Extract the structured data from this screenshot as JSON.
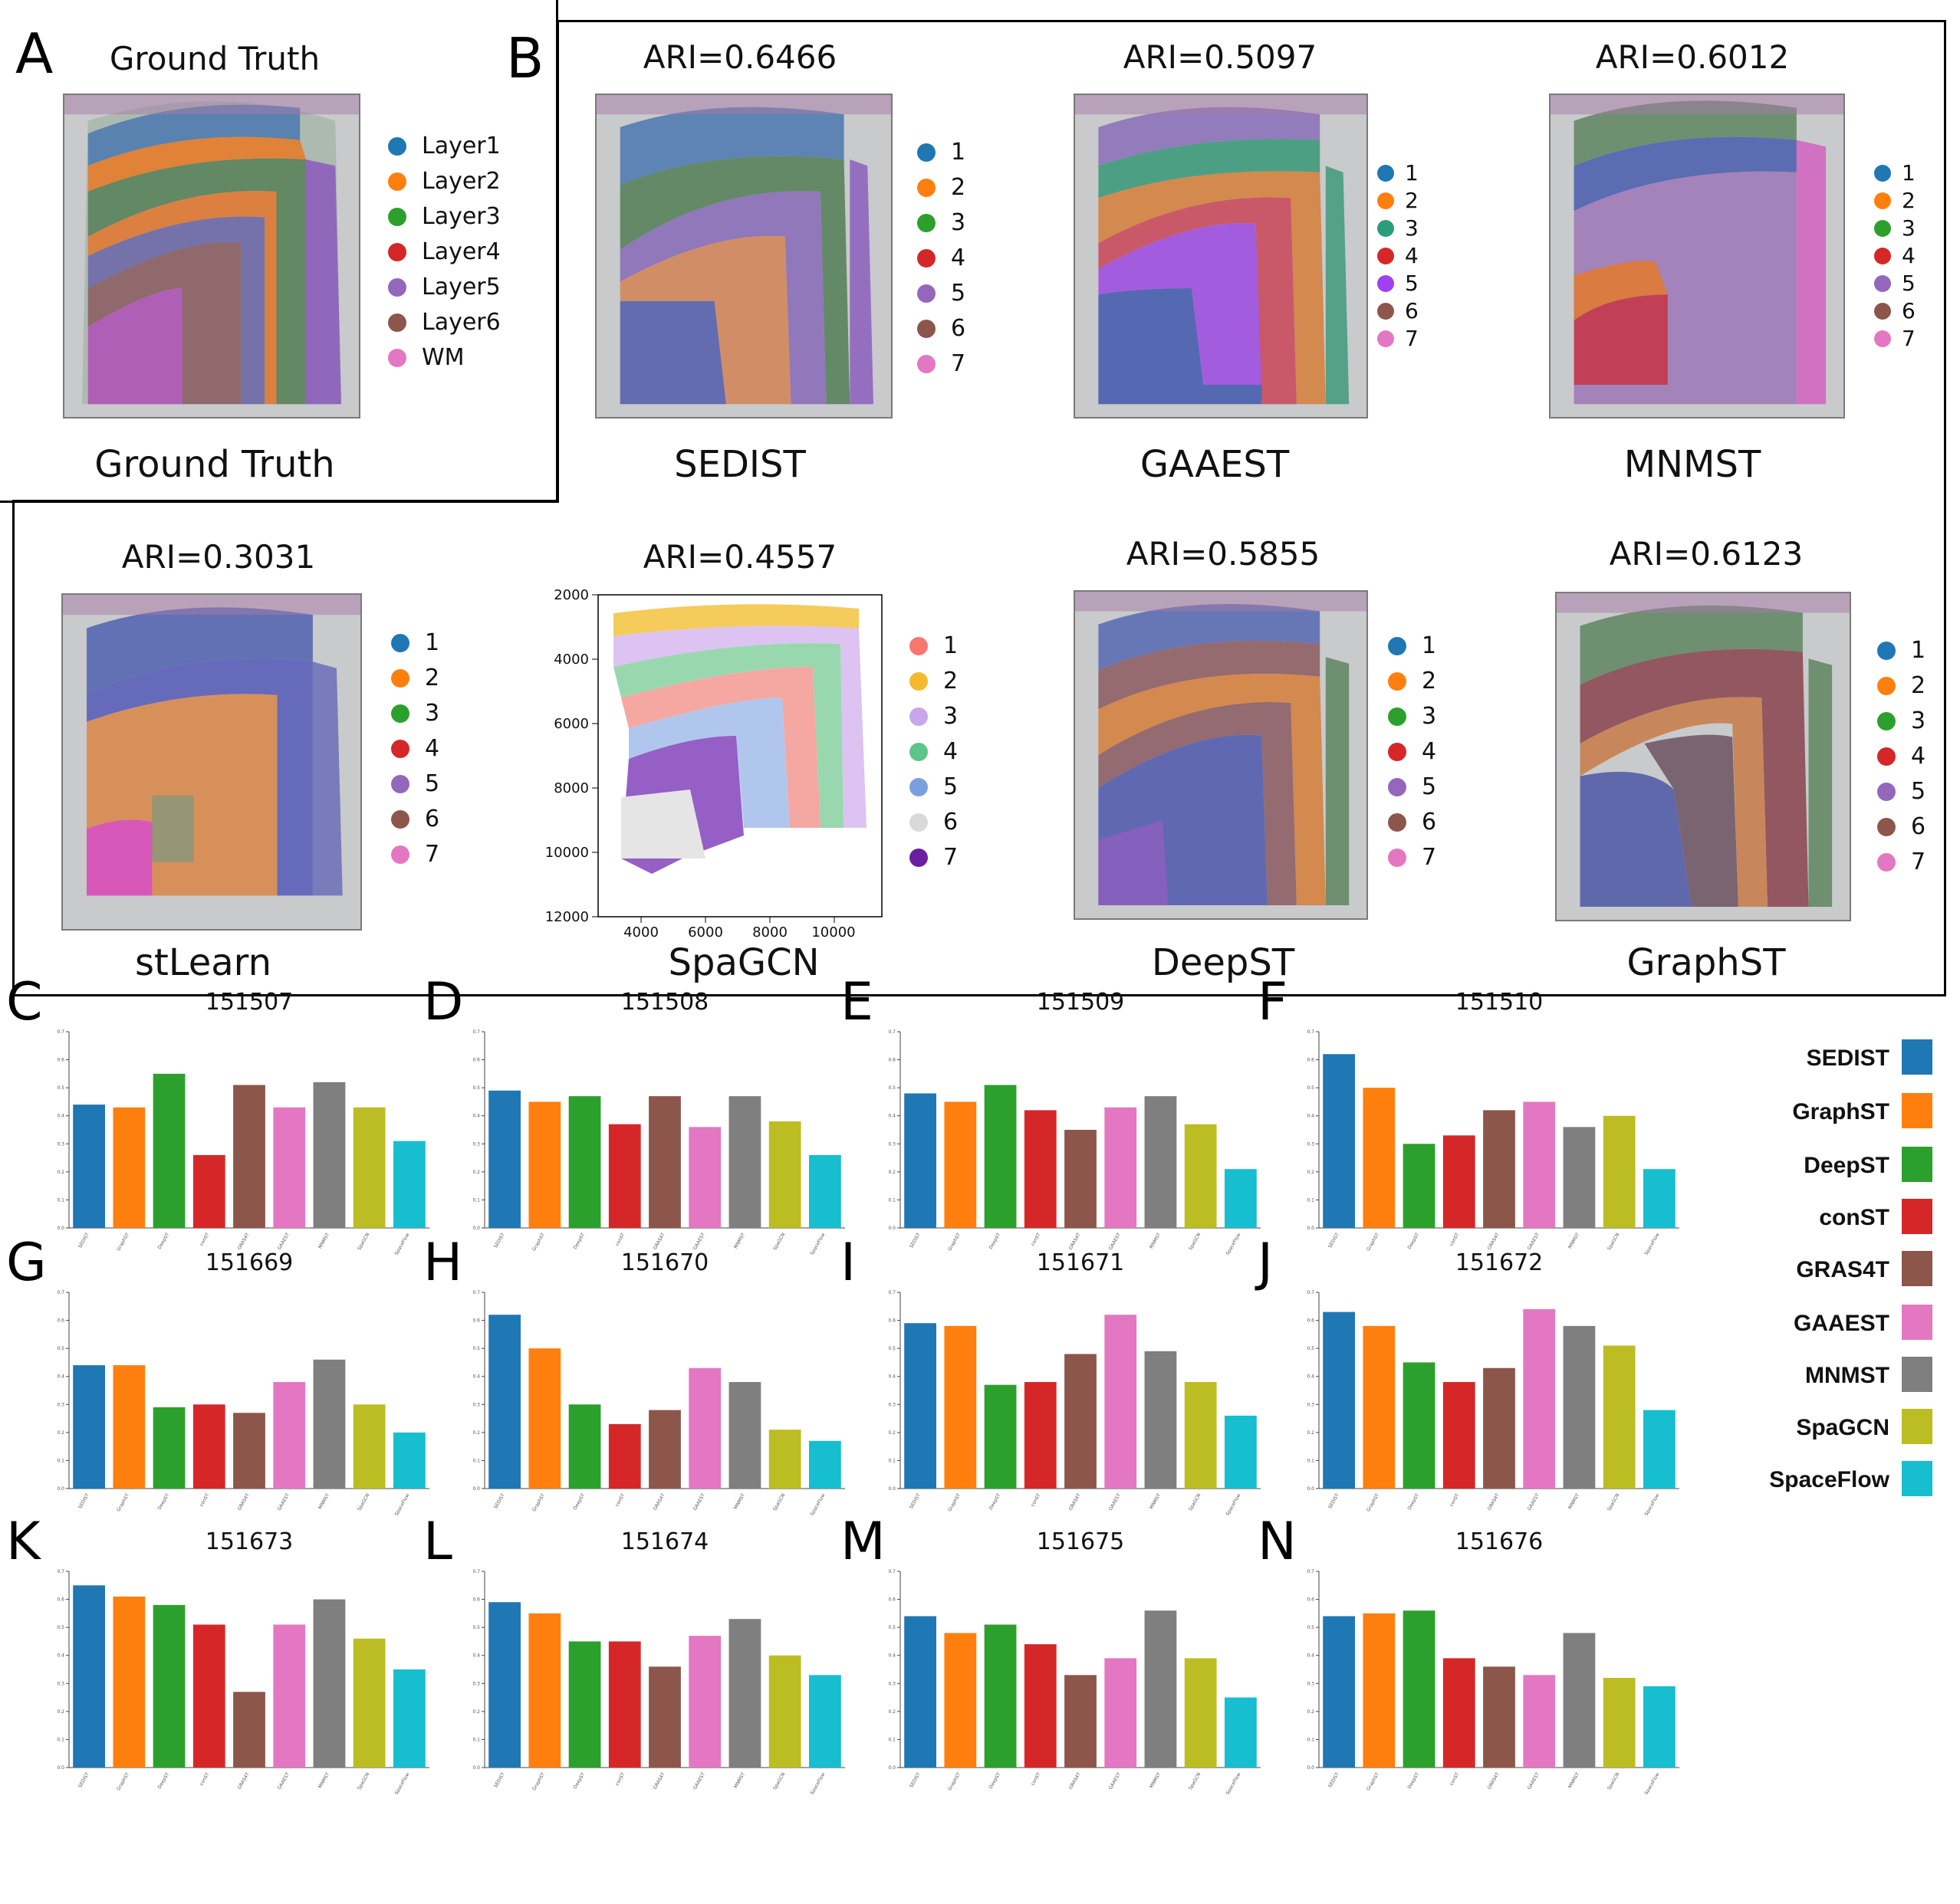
{
  "panels": {
    "A": "A",
    "B": "B",
    "C": "C",
    "D": "D",
    "E": "E",
    "F": "F",
    "G": "G",
    "H": "H",
    "I": "I",
    "J": "J",
    "K": "K",
    "L": "L",
    "M": "M",
    "N": "N"
  },
  "ground_truth": {
    "top_title": "Ground Truth",
    "bottom_title": "Ground Truth",
    "legend": [
      "Layer1",
      "Layer2",
      "Layer3",
      "Layer4",
      "Layer5",
      "Layer6",
      "WM"
    ]
  },
  "cluster_colors": [
    "#1f77b4",
    "#ff7f0e",
    "#2ca02c",
    "#d62728",
    "#9467bd",
    "#8c564b",
    "#e377c2"
  ],
  "spagcn_colors": [
    "#f8766d",
    "#f5b82e",
    "#c7a6ec",
    "#5ec48a",
    "#7b9fdc",
    "#d9d9d9",
    "#6a1fa0"
  ],
  "methods_top": [
    {
      "ari": "ARI=0.6466",
      "name": "SEDIST",
      "legend": [
        "1",
        "2",
        "3",
        "4",
        "5",
        "6",
        "7"
      ]
    },
    {
      "ari": "ARI=0.5097",
      "name": "GAAEST",
      "legend": [
        "1",
        "2",
        "3",
        "4",
        "5",
        "6",
        "7"
      ]
    },
    {
      "ari": "ARI=0.6012",
      "name": "MNMST",
      "legend": [
        "1",
        "2",
        "3",
        "4",
        "5",
        "6",
        "7"
      ]
    }
  ],
  "methods_bottom": [
    {
      "ari": "ARI=0.3031",
      "name": "stLearn",
      "legend": [
        "1",
        "2",
        "3",
        "4",
        "5",
        "6",
        "7"
      ]
    },
    {
      "ari": "ARI=0.4557",
      "name": "SpaGCN",
      "legend": [
        "1",
        "2",
        "3",
        "4",
        "5",
        "6",
        "7"
      ]
    },
    {
      "ari": "ARI=0.5855",
      "name": "DeepST",
      "legend": [
        "1",
        "2",
        "3",
        "4",
        "5",
        "6",
        "7"
      ]
    },
    {
      "ari": "ARI=0.6123",
      "name": "GraphST",
      "legend": [
        "1",
        "2",
        "3",
        "4",
        "5",
        "6",
        "7"
      ]
    }
  ],
  "spagcn_axes": {
    "y_ticks": [
      "2000",
      "4000",
      "6000",
      "8000",
      "10000",
      "12000"
    ],
    "x_ticks": [
      "4000",
      "6000",
      "8000",
      "10000"
    ]
  },
  "bar_legend": [
    {
      "name": "SEDIST",
      "color": "#1f77b4"
    },
    {
      "name": "GraphST",
      "color": "#ff7f0e"
    },
    {
      "name": "DeepST",
      "color": "#2ca02c"
    },
    {
      "name": "conST",
      "color": "#d62728"
    },
    {
      "name": "GRAS4T",
      "color": "#8c564b"
    },
    {
      "name": "GAAEST",
      "color": "#e377c2"
    },
    {
      "name": "MNMST",
      "color": "#7f7f7f"
    },
    {
      "name": "SpaGCN",
      "color": "#bcbd22"
    },
    {
      "name": "SpaceFlow",
      "color": "#17becf"
    }
  ],
  "chart_data": [
    {
      "type": "bar",
      "panel": "C",
      "title": "151507",
      "categories": [
        "SEDIST",
        "GraphST",
        "DeepST",
        "conST",
        "GRAS4T",
        "GAAEST",
        "MNMST",
        "SpaGCN",
        "SpaceFlow"
      ],
      "values": [
        0.44,
        0.43,
        0.55,
        0.26,
        0.51,
        0.43,
        0.52,
        0.43,
        0.31
      ],
      "ylim": [
        0,
        0.7
      ]
    },
    {
      "type": "bar",
      "panel": "D",
      "title": "151508",
      "categories": [
        "SEDIST",
        "GraphST",
        "DeepST",
        "conST",
        "GRAS4T",
        "GAAEST",
        "MNMST",
        "SpaGCN",
        "SpaceFlow"
      ],
      "values": [
        0.49,
        0.45,
        0.47,
        0.37,
        0.47,
        0.36,
        0.47,
        0.38,
        0.26
      ],
      "ylim": [
        0,
        0.7
      ]
    },
    {
      "type": "bar",
      "panel": "E",
      "title": "151509",
      "categories": [
        "SEDIST",
        "GraphST",
        "DeepST",
        "conST",
        "GRAS4T",
        "GAAEST",
        "MNMST",
        "SpaGCN",
        "SpaceFlow"
      ],
      "values": [
        0.48,
        0.45,
        0.51,
        0.42,
        0.35,
        0.43,
        0.47,
        0.37,
        0.21
      ],
      "ylim": [
        0,
        0.7
      ]
    },
    {
      "type": "bar",
      "panel": "F",
      "title": "151510",
      "categories": [
        "SEDIST",
        "GraphST",
        "DeepST",
        "conST",
        "GRAS4T",
        "GAAEST",
        "MNMST",
        "SpaGCN",
        "SpaceFlow"
      ],
      "values": [
        0.62,
        0.5,
        0.3,
        0.33,
        0.42,
        0.45,
        0.36,
        0.4,
        0.21
      ],
      "ylim": [
        0,
        0.7
      ]
    },
    {
      "type": "bar",
      "panel": "G",
      "title": "151669",
      "categories": [
        "SEDIST",
        "GraphST",
        "DeepST",
        "conST",
        "GRAS4T",
        "GAAEST",
        "MNMST",
        "SpaGCN",
        "SpaceFlow"
      ],
      "values": [
        0.44,
        0.44,
        0.29,
        0.3,
        0.27,
        0.38,
        0.46,
        0.3,
        0.2
      ],
      "ylim": [
        0,
        0.7
      ]
    },
    {
      "type": "bar",
      "panel": "H",
      "title": "151670",
      "categories": [
        "SEDIST",
        "GraphST",
        "DeepST",
        "conST",
        "GRAS4T",
        "GAAEST",
        "MNMST",
        "SpaGCN",
        "SpaceFlow"
      ],
      "values": [
        0.62,
        0.5,
        0.3,
        0.23,
        0.28,
        0.43,
        0.38,
        0.21,
        0.17
      ],
      "ylim": [
        0,
        0.7
      ]
    },
    {
      "type": "bar",
      "panel": "I",
      "title": "151671",
      "categories": [
        "SEDIST",
        "GraphST",
        "DeepST",
        "conST",
        "GRAS4T",
        "GAAEST",
        "MNMST",
        "SpaGCN",
        "SpaceFlow"
      ],
      "values": [
        0.59,
        0.58,
        0.37,
        0.38,
        0.48,
        0.62,
        0.49,
        0.38,
        0.26
      ],
      "ylim": [
        0,
        0.7
      ]
    },
    {
      "type": "bar",
      "panel": "J",
      "title": "151672",
      "categories": [
        "SEDIST",
        "GraphST",
        "DeepST",
        "conST",
        "GRAS4T",
        "GAAEST",
        "MNMST",
        "SpaGCN",
        "SpaceFlow"
      ],
      "values": [
        0.63,
        0.58,
        0.45,
        0.38,
        0.43,
        0.64,
        0.58,
        0.51,
        0.28
      ],
      "ylim": [
        0,
        0.7
      ]
    },
    {
      "type": "bar",
      "panel": "K",
      "title": "151673",
      "categories": [
        "SEDIST",
        "GraphST",
        "DeepST",
        "conST",
        "GRAS4T",
        "GAAEST",
        "MNMST",
        "SpaGCN",
        "SpaceFlow"
      ],
      "values": [
        0.65,
        0.61,
        0.58,
        0.51,
        0.27,
        0.51,
        0.6,
        0.46,
        0.35
      ],
      "ylim": [
        0,
        0.7
      ]
    },
    {
      "type": "bar",
      "panel": "L",
      "title": "151674",
      "categories": [
        "SEDIST",
        "GraphST",
        "DeepST",
        "conST",
        "GRAS4T",
        "GAAEST",
        "MNMST",
        "SpaGCN",
        "SpaceFlow"
      ],
      "values": [
        0.59,
        0.55,
        0.45,
        0.45,
        0.36,
        0.47,
        0.53,
        0.4,
        0.33
      ],
      "ylim": [
        0,
        0.7
      ]
    },
    {
      "type": "bar",
      "panel": "M",
      "title": "151675",
      "categories": [
        "SEDIST",
        "GraphST",
        "DeepST",
        "conST",
        "GRAS4T",
        "GAAEST",
        "MNMST",
        "SpaGCN",
        "SpaceFlow"
      ],
      "values": [
        0.54,
        0.48,
        0.51,
        0.44,
        0.33,
        0.39,
        0.56,
        0.39,
        0.25
      ],
      "ylim": [
        0,
        0.7
      ]
    },
    {
      "type": "bar",
      "panel": "N",
      "title": "151676",
      "categories": [
        "SEDIST",
        "GraphST",
        "DeepST",
        "conST",
        "GRAS4T",
        "GAAEST",
        "MNMST",
        "SpaGCN",
        "SpaceFlow"
      ],
      "values": [
        0.54,
        0.55,
        0.56,
        0.39,
        0.36,
        0.33,
        0.48,
        0.32,
        0.29
      ],
      "ylim": [
        0,
        0.7
      ]
    }
  ]
}
